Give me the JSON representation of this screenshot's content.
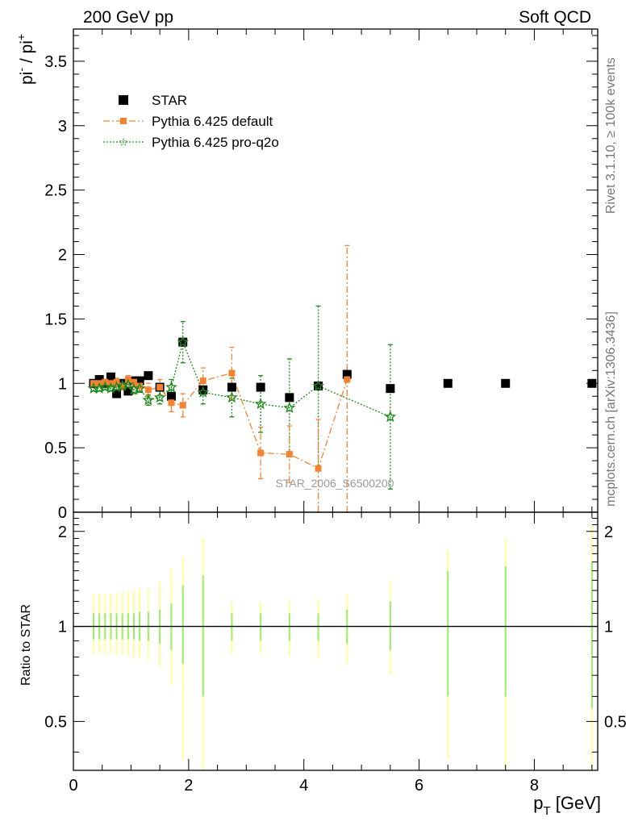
{
  "header": {
    "left": "200 GeV pp",
    "right": "Soft QCD"
  },
  "side_labels": {
    "rivet": "Rivet 3.1.10, ≥ 100k events",
    "mcplots": "mcplots.cern.ch [arXiv:1306.3436]"
  },
  "watermark": "STAR_2006_S6500200",
  "colors": {
    "star": "#000000",
    "pythia_default": "#f58231",
    "pythia_q2o": "#1a8a1a",
    "band_yellow": "#ffff99",
    "band_green": "#99ee66"
  },
  "chart_data": [
    {
      "type": "scatter",
      "panel": "main",
      "ylabel": "pi⁻ / pi⁺",
      "ylabel_base": "pi",
      "ylabel_sup1": "-",
      "ylabel_mid": " / pi",
      "ylabel_sup2": "+",
      "xlim": [
        0,
        9.1
      ],
      "ylim": [
        0,
        3.75
      ],
      "yticks": [
        "0",
        "0.5",
        "1",
        "1.5",
        "2",
        "2.5",
        "3",
        "3.5"
      ],
      "ytick_values": [
        0,
        0.5,
        1,
        1.5,
        2,
        2.5,
        3,
        3.5
      ],
      "legend": {
        "position": "top-left"
      },
      "series": [
        {
          "name": "STAR",
          "marker": "square",
          "x": [
            0.35,
            0.45,
            0.55,
            0.65,
            0.75,
            0.85,
            0.95,
            1.05,
            1.15,
            1.3,
            1.5,
            1.7,
            1.9,
            2.25,
            2.75,
            3.25,
            3.75,
            4.25,
            4.75,
            5.5,
            6.5,
            7.5,
            9.0
          ],
          "y": [
            1.0,
            1.03,
            1.0,
            1.05,
            0.92,
            1.0,
            0.94,
            1.02,
            1.02,
            1.06,
            0.97,
            0.9,
            1.32,
            0.95,
            0.97,
            0.97,
            0.89,
            0.98,
            1.07,
            0.96,
            1.0,
            1.0,
            1.0
          ],
          "err": [
            0.02,
            0.02,
            0.02,
            0.02,
            0.02,
            0.02,
            0.02,
            0.02,
            0.02,
            0.02,
            0.02,
            0.02,
            0.03,
            0.03,
            0.03,
            0.03,
            0.03,
            0.03,
            0.03,
            0.03,
            0.0,
            0.0,
            0.0
          ]
        },
        {
          "name": "Pythia 6.425 default",
          "marker": "square-small",
          "line": "dashdot",
          "x": [
            0.35,
            0.45,
            0.55,
            0.65,
            0.75,
            0.85,
            0.95,
            1.05,
            1.15,
            1.3,
            1.5,
            1.7,
            1.9,
            2.25,
            2.75,
            3.25,
            3.75,
            4.25,
            4.75
          ],
          "y": [
            1.0,
            1.0,
            1.01,
            1.0,
            1.01,
            0.98,
            1.03,
            1.01,
            0.98,
            0.95,
            0.97,
            0.85,
            0.83,
            1.02,
            1.08,
            0.46,
            0.45,
            0.34,
            1.03
          ],
          "err": [
            0.02,
            0.02,
            0.02,
            0.02,
            0.03,
            0.03,
            0.03,
            0.03,
            0.04,
            0.05,
            0.06,
            0.07,
            0.09,
            0.1,
            0.2,
            0.2,
            0.22,
            0.38,
            1.04
          ]
        },
        {
          "name": "Pythia 6.425 pro-q2o",
          "marker": "star",
          "line": "dotted",
          "x": [
            0.35,
            0.45,
            0.55,
            0.65,
            0.75,
            0.85,
            0.95,
            1.05,
            1.15,
            1.3,
            1.5,
            1.7,
            1.9,
            2.25,
            2.75,
            3.25,
            3.75,
            4.25,
            5.5
          ],
          "y": [
            0.96,
            0.96,
            0.97,
            0.96,
            0.97,
            0.98,
            0.99,
            0.95,
            0.96,
            0.87,
            0.89,
            0.97,
            1.32,
            0.93,
            0.89,
            0.84,
            0.81,
            0.98,
            0.74
          ],
          "err": [
            0.02,
            0.02,
            0.02,
            0.02,
            0.02,
            0.03,
            0.03,
            0.03,
            0.03,
            0.04,
            0.05,
            0.06,
            0.16,
            0.09,
            0.15,
            0.22,
            0.38,
            0.62,
            0.56
          ]
        }
      ]
    },
    {
      "type": "scatter",
      "panel": "ratio",
      "ylabel": "Ratio to STAR",
      "xlabel": "p_T [GeV]",
      "xlabel_base": "p",
      "xlabel_sub": "T",
      "xlabel_unit": " [GeV]",
      "xlim": [
        0,
        9.1
      ],
      "ylim": [
        0.35,
        2.3
      ],
      "xticks": [
        "0",
        "2",
        "4",
        "6",
        "8"
      ],
      "xtick_values": [
        0,
        2,
        4,
        6,
        8
      ],
      "yticks": [
        "0.5",
        "1",
        "2"
      ],
      "ytick_values": [
        0.5,
        1,
        2
      ],
      "reference_line": 1,
      "bands": [
        {
          "x": 0.35,
          "inner": [
            0.91,
            1.1
          ],
          "outer": [
            0.82,
            1.27
          ]
        },
        {
          "x": 0.45,
          "inner": [
            0.91,
            1.1
          ],
          "outer": [
            0.82,
            1.27
          ]
        },
        {
          "x": 0.55,
          "inner": [
            0.91,
            1.1
          ],
          "outer": [
            0.82,
            1.27
          ]
        },
        {
          "x": 0.65,
          "inner": [
            0.91,
            1.1
          ],
          "outer": [
            0.82,
            1.27
          ]
        },
        {
          "x": 0.75,
          "inner": [
            0.91,
            1.1
          ],
          "outer": [
            0.81,
            1.28
          ]
        },
        {
          "x": 0.85,
          "inner": [
            0.91,
            1.1
          ],
          "outer": [
            0.81,
            1.28
          ]
        },
        {
          "x": 0.95,
          "inner": [
            0.91,
            1.1
          ],
          "outer": [
            0.81,
            1.29
          ]
        },
        {
          "x": 1.05,
          "inner": [
            0.91,
            1.1
          ],
          "outer": [
            0.8,
            1.3
          ]
        },
        {
          "x": 1.15,
          "inner": [
            0.9,
            1.11
          ],
          "outer": [
            0.79,
            1.31
          ]
        },
        {
          "x": 1.3,
          "inner": [
            0.9,
            1.11
          ],
          "outer": [
            0.78,
            1.32
          ]
        },
        {
          "x": 1.5,
          "inner": [
            0.88,
            1.13
          ],
          "outer": [
            0.74,
            1.39
          ]
        },
        {
          "x": 1.7,
          "inner": [
            0.84,
            1.18
          ],
          "outer": [
            0.65,
            1.52
          ]
        },
        {
          "x": 1.9,
          "inner": [
            0.76,
            1.35
          ],
          "outer": [
            0.38,
            1.65
          ]
        },
        {
          "x": 2.25,
          "inner": [
            0.6,
            1.45
          ],
          "outer": [
            0.35,
            1.9
          ]
        },
        {
          "x": 2.75,
          "inner": [
            0.9,
            1.1
          ],
          "outer": [
            0.82,
            1.2
          ]
        },
        {
          "x": 3.25,
          "inner": [
            0.9,
            1.1
          ],
          "outer": [
            0.82,
            1.2
          ]
        },
        {
          "x": 3.75,
          "inner": [
            0.9,
            1.1
          ],
          "outer": [
            0.81,
            1.2
          ]
        },
        {
          "x": 4.25,
          "inner": [
            0.9,
            1.1
          ],
          "outer": [
            0.79,
            1.22
          ]
        },
        {
          "x": 4.75,
          "inner": [
            0.88,
            1.13
          ],
          "outer": [
            0.76,
            1.27
          ]
        },
        {
          "x": 5.5,
          "inner": [
            0.84,
            1.2
          ],
          "outer": [
            0.7,
            1.4
          ]
        },
        {
          "x": 6.5,
          "inner": [
            0.6,
            1.5
          ],
          "outer": [
            0.38,
            1.75
          ]
        },
        {
          "x": 7.5,
          "inner": [
            0.6,
            1.55
          ],
          "outer": [
            0.35,
            1.9
          ]
        },
        {
          "x": 9.0,
          "inner": [
            0.55,
            1.6
          ],
          "outer": [
            0.35,
            2.1
          ]
        }
      ]
    }
  ]
}
